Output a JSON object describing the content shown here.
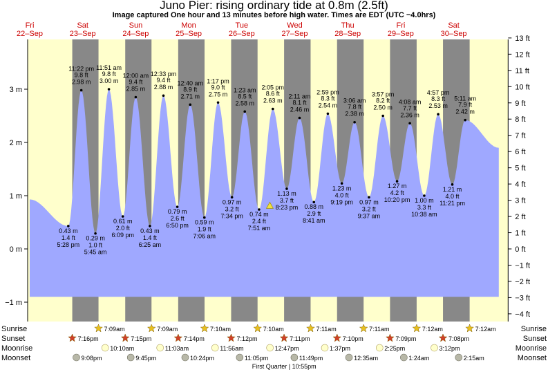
{
  "header": {
    "title": "Juno Pier: rising  ordinary tide at 0.8m (2.5ft)",
    "subtitle": "Image captured One hour and 13 minutes before high water. Times are EDT (UTC −4.0hrs)"
  },
  "colors": {
    "day": "#ffffcc",
    "night": "#888888",
    "tide": "#9fa8ff",
    "date_label": "#cc0000",
    "sunrise_star": "#e8c020",
    "sunset_star": "#d0402a",
    "moonrise": "#ffffcc",
    "moonset": "#b8b8a8"
  },
  "chart_data": {
    "type": "area",
    "title": "Juno Pier: rising  ordinary tide at 0.8m (2.5ft)",
    "y_left_unit": "m",
    "y_right_unit": "ft",
    "ylim_m": [
      -1.0,
      3.9
    ],
    "y_left_ticks": [
      {
        "value": 3,
        "label": "3 m"
      },
      {
        "value": 2,
        "label": "2 m"
      },
      {
        "value": 1,
        "label": "1 m"
      },
      {
        "value": 0,
        "label": "0 m"
      },
      {
        "value": -1,
        "label": "−1 m"
      }
    ],
    "y_right_ticks": [
      "13 ft",
      "12 ft",
      "11 ft",
      "10 ft",
      "9 ft",
      "8 ft",
      "7 ft",
      "6 ft",
      "5 ft",
      "4 ft",
      "3 ft",
      "2 ft",
      "1 ft",
      "0 ft",
      "−1 ft",
      "−2 ft",
      "−3 ft",
      "−4 ft"
    ],
    "days": [
      {
        "dow": "Fri",
        "date": "22–Sep"
      },
      {
        "dow": "Sat",
        "date": "23–Sep"
      },
      {
        "dow": "Sun",
        "date": "24–Sep"
      },
      {
        "dow": "Mon",
        "date": "25–Sep"
      },
      {
        "dow": "Tue",
        "date": "26–Sep"
      },
      {
        "dow": "Wed",
        "date": "27–Sep"
      },
      {
        "dow": "Thu",
        "date": "28–Sep"
      },
      {
        "dow": "Fri",
        "date": "29–Sep"
      },
      {
        "dow": "Sat",
        "date": "30–Sep"
      }
    ],
    "high_tides": [
      {
        "day": 0.9736,
        "time": "11:22 pm",
        "ft": "9.8 ft",
        "m": "2.98 m",
        "value": 2.98
      },
      {
        "day": 1.4938,
        "time": "11:51 am",
        "ft": "9.8 ft",
        "m": "3.00 m",
        "value": 3.0
      },
      {
        "day": 2.0,
        "time": "12:00 am",
        "ft": "9.4 ft",
        "m": "2.85 m",
        "value": 2.85
      },
      {
        "day": 2.5229,
        "time": "12:33 pm",
        "ft": "9.4 ft",
        "m": "2.88 m",
        "value": 2.88
      },
      {
        "day": 3.0278,
        "time": "12:40 am",
        "ft": "8.9 ft",
        "m": "2.71 m",
        "value": 2.71
      },
      {
        "day": 3.5535,
        "time": "1:17 pm",
        "ft": "9.0 ft",
        "m": "2.75 m",
        "value": 2.75
      },
      {
        "day": 4.0576,
        "time": "1:23 am",
        "ft": "8.5 ft",
        "m": "2.58 m",
        "value": 2.58
      },
      {
        "day": 4.5868,
        "time": "2:05 pm",
        "ft": "8.6 ft",
        "m": "2.63 m",
        "value": 2.63
      },
      {
        "day": 5.091,
        "time": "2:11 am",
        "ft": "8.1 ft",
        "m": "2.46 m",
        "value": 2.46
      },
      {
        "day": 5.6243,
        "time": "2:59 pm",
        "ft": "8.3 ft",
        "m": "2.54 m",
        "value": 2.54
      },
      {
        "day": 6.1292,
        "time": "3:06 am",
        "ft": "7.8 ft",
        "m": "2.38 m",
        "value": 2.38
      },
      {
        "day": 6.6646,
        "time": "3:57 pm",
        "ft": "8.2 ft",
        "m": "2.50 m",
        "value": 2.5
      },
      {
        "day": 7.1722,
        "time": "4:08 am",
        "ft": "7.7 ft",
        "m": "2.36 m",
        "value": 2.36
      },
      {
        "day": 7.7063,
        "time": "4:57 pm",
        "ft": "8.3 ft",
        "m": "2.53 m",
        "value": 2.53
      },
      {
        "day": 8.216,
        "time": "5:11 am",
        "ft": "7.9 ft",
        "m": "2.42 m",
        "value": 2.42
      }
    ],
    "low_tides": [
      {
        "day": 0.7278,
        "time": "5:28 pm",
        "ft": "1.4 ft",
        "m": "0.43 m",
        "value": 0.43
      },
      {
        "day": 1.2396,
        "time": "5:45 am",
        "ft": "1.0 ft",
        "m": "0.29 m",
        "value": 0.29
      },
      {
        "day": 1.7563,
        "time": "6:09 pm",
        "ft": "2.0 ft",
        "m": "0.61 m",
        "value": 0.61
      },
      {
        "day": 2.2674,
        "time": "6:25 am",
        "ft": "1.4 ft",
        "m": "0.43 m",
        "value": 0.43
      },
      {
        "day": 2.7847,
        "time": "6:50 pm",
        "ft": "2.6 ft",
        "m": "0.79 m",
        "value": 0.79
      },
      {
        "day": 3.2958,
        "time": "7:06 am",
        "ft": "1.9 ft",
        "m": "0.59 m",
        "value": 0.59
      },
      {
        "day": 3.8153,
        "time": "7:34 pm",
        "ft": "3.2 ft",
        "m": "0.97 m",
        "value": 0.97
      },
      {
        "day": 4.3271,
        "time": "7:51 am",
        "ft": "2.4 ft",
        "m": "0.74 m",
        "value": 0.74
      },
      {
        "day": 4.8493,
        "time": "8:23 pm",
        "ft": "3.7 ft",
        "m": "1.13 m",
        "value": 1.13
      },
      {
        "day": 5.3618,
        "time": "8:41 am",
        "ft": "2.9 ft",
        "m": "0.88 m",
        "value": 0.88
      },
      {
        "day": 5.8882,
        "time": "9:19 pm",
        "ft": "4.0 ft",
        "m": "1.23 m",
        "value": 1.23
      },
      {
        "day": 6.4007,
        "time": "9:37 am",
        "ft": "3.2 ft",
        "m": "0.97 m",
        "value": 0.97
      },
      {
        "day": 6.9306,
        "time": "10:20 pm",
        "ft": "4.2 ft",
        "m": "1.27 m",
        "value": 1.27
      },
      {
        "day": 7.4431,
        "time": "10:38 am",
        "ft": "3.3 ft",
        "m": "1.00 m",
        "value": 1.0
      },
      {
        "day": 7.9729,
        "time": "11:21 pm",
        "ft": "4.0 ft",
        "m": "1.21 m",
        "value": 1.21
      }
    ],
    "current_tide": {
      "day": 4.53,
      "value": 0.8
    },
    "sunrise": [
      {
        "day": 1.2979,
        "time": "7:09am"
      },
      {
        "day": 2.2979,
        "time": "7:09am"
      },
      {
        "day": 3.2986,
        "time": "7:10am"
      },
      {
        "day": 4.2986,
        "time": "7:10am"
      },
      {
        "day": 5.2993,
        "time": "7:11am"
      },
      {
        "day": 6.2993,
        "time": "7:11am"
      },
      {
        "day": 7.3,
        "time": "7:12am"
      },
      {
        "day": 8.3,
        "time": "7:12am"
      }
    ],
    "sunset": [
      {
        "day": 0.8028,
        "time": "7:16pm"
      },
      {
        "day": 1.8021,
        "time": "7:15pm"
      },
      {
        "day": 2.8014,
        "time": "7:14pm"
      },
      {
        "day": 3.8,
        "time": "7:12pm"
      },
      {
        "day": 4.7993,
        "time": "7:11pm"
      },
      {
        "day": 5.7986,
        "time": "7:10pm"
      },
      {
        "day": 6.7979,
        "time": "7:09pm"
      },
      {
        "day": 7.7972,
        "time": "7:08pm"
      }
    ],
    "moonrise": [
      {
        "day": 1.4236,
        "time": "10:10am"
      },
      {
        "day": 2.4604,
        "time": "11:03am"
      },
      {
        "day": 3.4972,
        "time": "11:56am"
      },
      {
        "day": 4.5326,
        "time": "12:47pm"
      },
      {
        "day": 5.5674,
        "time": "1:37pm"
      },
      {
        "day": 6.6007,
        "time": "2:25pm"
      },
      {
        "day": 7.6333,
        "time": "3:12pm"
      }
    ],
    "moonset": [
      {
        "day": 0.8806,
        "time": "9:08pm"
      },
      {
        "day": 1.9063,
        "time": "9:45pm"
      },
      {
        "day": 2.9333,
        "time": "10:24pm"
      },
      {
        "day": 3.9618,
        "time": "11:05pm"
      },
      {
        "day": 4.9924,
        "time": "11:49pm"
      },
      {
        "day": 6.0243,
        "time": "12:35am"
      },
      {
        "day": 7.0583,
        "time": "1:24am"
      },
      {
        "day": 8.0938,
        "time": "2:15am"
      }
    ],
    "bottom_rows": {
      "sunrise": "Sunrise",
      "sunset": "Sunset",
      "moonrise": "Moonrise",
      "moonset": "Moonset"
    },
    "moon_phase": {
      "label": "First Quarter | 10:55pm",
      "day": 4.8
    }
  }
}
